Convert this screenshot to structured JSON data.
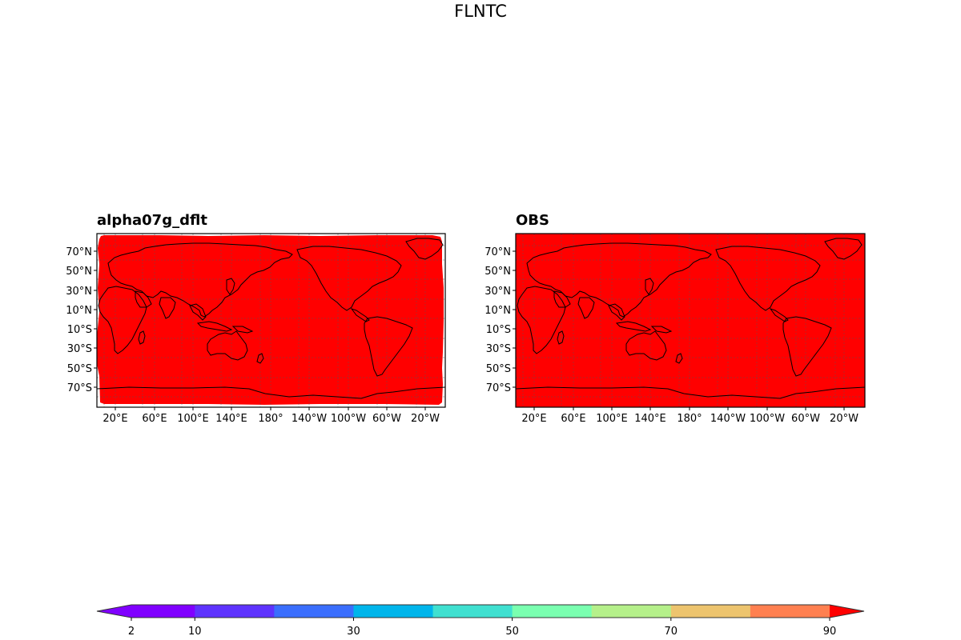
{
  "figure": {
    "suptitle": "FLNTC"
  },
  "panels": [
    {
      "title": "alpha07g_dflt",
      "fill_color": "#ff0000",
      "lat_ticks": [
        "70°N",
        "50°N",
        "30°N",
        "10°N",
        "10°S",
        "30°S",
        "50°S",
        "70°S"
      ],
      "lon_ticks": [
        "20°E",
        "60°E",
        "100°E",
        "140°E",
        "180°",
        "140°W",
        "100°W",
        "60°W",
        "20°W"
      ]
    },
    {
      "title": "OBS",
      "fill_color": "#ff0000",
      "lat_ticks": [
        "70°N",
        "50°N",
        "30°N",
        "10°N",
        "10°S",
        "30°S",
        "50°S",
        "70°S"
      ],
      "lon_ticks": [
        "20°E",
        "60°E",
        "100°E",
        "140°E",
        "180°",
        "140°W",
        "100°W",
        "60°W",
        "20°W"
      ]
    }
  ],
  "colorbar": {
    "levels": [
      2,
      10,
      20,
      30,
      40,
      50,
      60,
      70,
      80,
      90
    ],
    "colors": [
      "#8000ff",
      "#5e33fe",
      "#3a6efd",
      "#00b5eb",
      "#40e0d0",
      "#7affb0",
      "#b5f08a",
      "#edc46e",
      "#ff8050",
      "#ff2a15"
    ],
    "under_color": "#8000ff",
    "over_color": "#ff0000",
    "tick_labels": [
      "2",
      "10",
      "30",
      "50",
      "70",
      "90"
    ],
    "tick_values": [
      2,
      10,
      30,
      50,
      70,
      90
    ]
  }
}
